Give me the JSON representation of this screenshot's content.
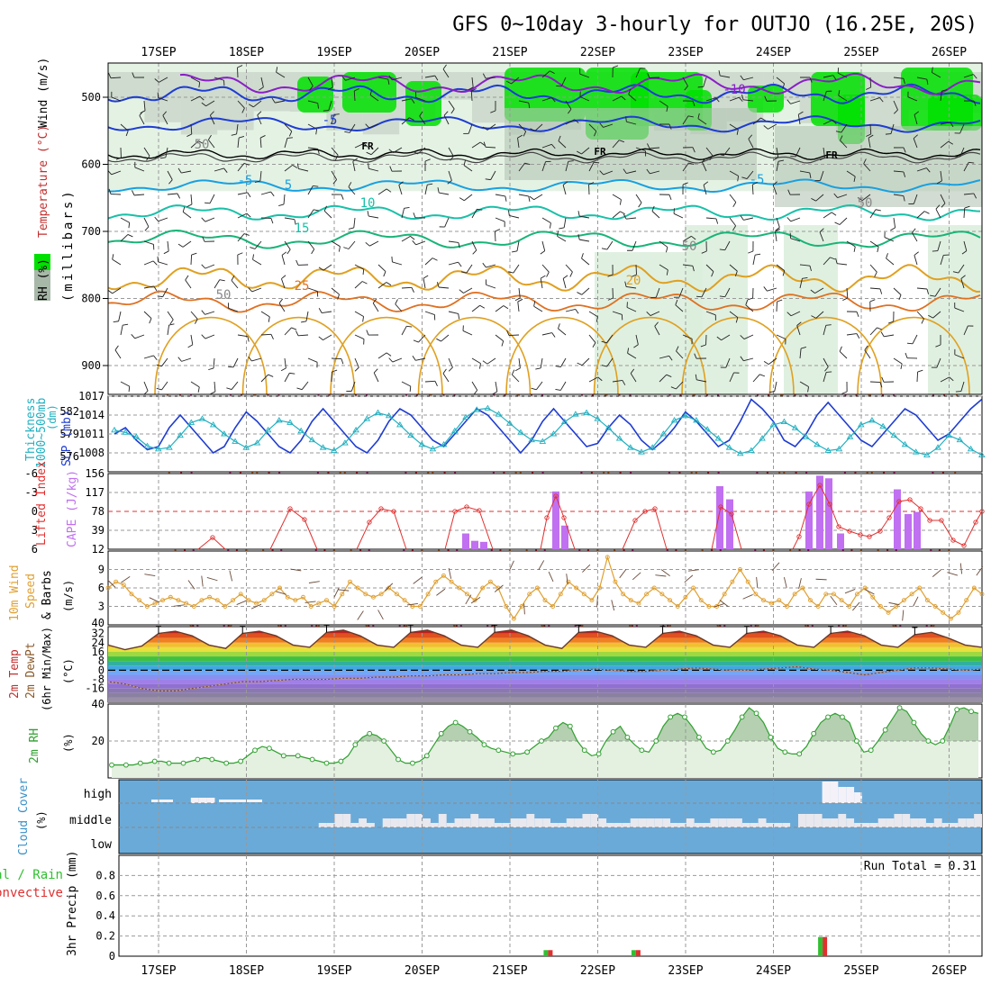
{
  "title": "GFS 0~10day 3-hourly for OUTJO (16.25E, 20S)",
  "dates": [
    "17SEP",
    "18SEP",
    "19SEP",
    "20SEP",
    "21SEP",
    "22SEP",
    "23SEP",
    "24SEP",
    "25SEP",
    "26SEP"
  ],
  "colors": {
    "rh_green": "#00e000",
    "rh_grey": "#a8b8a8",
    "temp_purple": "#8a1ec8",
    "temp_blue": "#1e3cd2",
    "temp_cyan": "#18a0e0",
    "temp_teal": "#18c0a8",
    "temp_green": "#18b478",
    "temp_gold": "#e0a020",
    "temp_orange": "#e07020",
    "temp_red": "#e02030",
    "temp_magenta": "#d0208a",
    "slp_color": "#1e3cd2",
    "thick_color": "#20b0c0",
    "li_color": "#e03030",
    "cape_color": "#c070f0",
    "wind_color": "#e0a030",
    "rh_line": "#30a030",
    "cloud_bg": "#6aaad8",
    "precip_total": "#30c030",
    "precip_conv": "#e03030"
  },
  "upper": {
    "ylabel_rh": "RH (%)",
    "ylabel_temp": "Temperature (°C)",
    "ylabel_wind": "Wind (m/s)",
    "ylabel_mb": "(millibars)",
    "ytick_labels": [
      "500",
      "600",
      "700",
      "800",
      "900"
    ],
    "contour_labels": [
      "-10",
      "-5",
      "FR",
      "FR",
      "FR",
      "-5",
      "-5",
      "5",
      "10",
      "15",
      "25",
      "20",
      "50",
      "50",
      "50",
      "50"
    ]
  },
  "panel_labels": {
    "thickness": "Thickness",
    "thickness_range": "1000~500mb",
    "thickness_unit": "(dm)",
    "slp": "SLP (mb)",
    "lifted_index": "Lifted Index",
    "cape": "CAPE (J/kg)",
    "wind10_a": "10m Wind",
    "wind10_b": "Speed",
    "wind10_c": "& Barbs",
    "wind10_unit": "(m/s)",
    "temp_a": "2m Temp",
    "temp_b": "2m DewPt",
    "temp_c": "(6hr Min/Max)",
    "temp_unit": "(°C)",
    "rh2m": "2m RH",
    "rh_unit": "(%)",
    "cloud_a": "Cloud Cover",
    "cloud_unit": "(%)",
    "cloud_high": "high",
    "cloud_middle": "middle",
    "cloud_low": "low",
    "precip_total": "Total / Rain",
    "precip_conv": "Convective",
    "precip_ylabel": "3hr Precip (mm)",
    "run_total": "Run Total = 0.31"
  },
  "chart_data": [
    {
      "type": "line",
      "title": "SLP (mb) and 1000~500mb Thickness (dm)",
      "x_unit": "3-hourly steps from 16SEP 18Z",
      "series": [
        {
          "name": "SLP (mb)",
          "ylim": [
            1005,
            1017
          ],
          "values": [
            1011,
            1012,
            1010,
            1008.5,
            1009,
            1012,
            1014,
            1012,
            1010,
            1008,
            1009,
            1012,
            1014.5,
            1013,
            1011,
            1009,
            1008,
            1010,
            1013,
            1015,
            1013,
            1011,
            1009,
            1008,
            1010,
            1013,
            1015,
            1014,
            1012,
            1010,
            1009,
            1011,
            1013,
            1015,
            1014,
            1012,
            1010,
            1008,
            1010,
            1013,
            1015,
            1013,
            1011,
            1009,
            1009.5,
            1012,
            1014,
            1012.5,
            1010,
            1008.5,
            1010,
            1012,
            1014.5,
            1013,
            1011,
            1009,
            1010,
            1013,
            1016.5,
            1015,
            1013,
            1010,
            1009,
            1011,
            1014,
            1016,
            1014,
            1012,
            1010,
            1009,
            1011,
            1013,
            1015,
            1014,
            1012,
            1010,
            1011,
            1013,
            1015,
            1016.5
          ]
        },
        {
          "name": "1000~500mb Thickness (dm)",
          "ylim": [
            574,
            584
          ],
          "values": [
            579.5,
            579.2,
            578.6,
            577.4,
            577,
            577.2,
            578.8,
            580.5,
            581,
            580.2,
            579,
            578,
            577.2,
            577.8,
            579.5,
            580.8,
            580.5,
            579.4,
            578.2,
            577.2,
            576.8,
            577.8,
            579.5,
            581,
            581.8,
            581.4,
            580.2,
            578.8,
            577.6,
            577,
            577.6,
            579.4,
            581.2,
            582.2,
            582.4,
            581.6,
            580.4,
            579.2,
            578.2,
            578,
            579,
            580.6,
            581.6,
            581.8,
            581,
            579.8,
            578.4,
            577.2,
            576.6,
            577.2,
            579,
            580.8,
            581.4,
            580.8,
            579.6,
            578.4,
            577.2,
            576.4,
            576.8,
            578.4,
            580.2,
            580.6,
            579.8,
            578.6,
            577.6,
            576.8,
            577,
            578.6,
            580.2,
            580.8,
            580,
            578.8,
            577.6,
            576.6,
            576.2,
            577.2,
            578.8,
            578.2,
            577,
            576.2
          ]
        }
      ]
    },
    {
      "type": "bar",
      "title": "Lifted Index and CAPE (J/kg)",
      "li_ylim": [
        6,
        -6
      ],
      "cape_ylim": [
        12,
        156
      ],
      "li_ticks": [
        "-6",
        "-3",
        "0",
        "3",
        "6"
      ],
      "cape_ticks": [
        "156",
        "117",
        "78",
        "39",
        "12"
      ],
      "lifted_index": [
        6,
        6,
        6,
        6,
        6,
        6,
        6,
        6,
        6,
        6,
        6,
        4.5,
        5.5,
        6,
        6,
        6,
        6,
        6,
        6,
        4,
        1,
        0,
        1,
        4,
        6,
        6,
        6,
        6,
        6,
        4,
        1,
        0,
        0,
        3,
        6,
        6,
        6,
        6,
        6,
        6,
        1,
        0,
        0,
        1,
        3,
        6,
        6,
        6,
        6,
        6,
        1,
        -1,
        2,
        6,
        6,
        6,
        6,
        6,
        3,
        1,
        0,
        4,
        6,
        6,
        6,
        6,
        6,
        4,
        1,
        0,
        0,
        4,
        6,
        6,
        6,
        6,
        6,
        1,
        -1,
        0,
        2,
        3,
        4,
        4,
        3,
        1,
        -1,
        0,
        2,
        4,
        4,
        5,
        6,
        6,
        6,
        5
      ],
      "cape": [
        0,
        0,
        0,
        0,
        0,
        0,
        0,
        0,
        0,
        0,
        0,
        0,
        0,
        0,
        0,
        0,
        0,
        0,
        0,
        0,
        0,
        0,
        0,
        0,
        0,
        0,
        0,
        0,
        0,
        0,
        0,
        0,
        0,
        0,
        0,
        0,
        0,
        0,
        0,
        0,
        0,
        0,
        0,
        0,
        0,
        0,
        0,
        0,
        0,
        0,
        0,
        0,
        0,
        0,
        30,
        16,
        14,
        0,
        0,
        0,
        0,
        0,
        0,
        0,
        0,
        0,
        0,
        0,
        0,
        0,
        0,
        0,
        0,
        0,
        0,
        0,
        110,
        45,
        0,
        0,
        0,
        0,
        0,
        0,
        0,
        0,
        0,
        0,
        0,
        0,
        0,
        0,
        0,
        0,
        0,
        0,
        0,
        0
      ]
    },
    {
      "type": "line",
      "title": "10m Wind Speed (m/s)",
      "ylim": [
        0,
        12
      ],
      "y_ticks": [
        "9",
        "6",
        "3"
      ],
      "values": [
        6,
        7,
        6.5,
        5,
        4,
        3,
        3.5,
        4,
        4.5,
        4,
        3.5,
        3,
        4,
        4.5,
        4,
        3,
        4,
        5,
        4,
        3.5,
        4,
        5,
        6,
        4.5,
        4,
        4.5,
        3,
        3.5,
        4,
        3,
        5,
        7,
        6,
        5,
        4.5,
        5,
        6,
        5,
        4,
        3,
        3,
        5,
        7,
        8,
        7,
        6,
        5,
        4,
        6,
        7,
        6,
        3,
        1,
        3,
        5,
        6,
        4,
        3,
        5,
        7,
        6,
        5,
        4,
        6,
        11,
        7,
        5,
        4,
        3.5,
        5,
        6,
        5,
        4,
        3,
        4.5,
        6,
        4,
        3,
        3,
        5,
        7,
        9,
        7,
        5,
        4,
        3.5,
        4,
        3,
        5,
        6,
        4,
        3,
        5,
        5,
        4,
        3,
        5,
        6,
        4.5,
        3,
        2,
        3,
        4,
        5,
        6,
        4,
        3,
        2,
        1,
        2,
        4,
        6,
        5
      ]
    },
    {
      "type": "area",
      "title": "2m Temp, 2m DewPt (6hr Min/Max) (°C)",
      "ylim": [
        -28,
        38
      ],
      "y_ticks": [
        "32",
        "24",
        "16",
        "8",
        "0",
        "-8",
        "-16"
      ],
      "temp_max": [
        22,
        18,
        21,
        32,
        34,
        30,
        22,
        19,
        32,
        34,
        30,
        22,
        20,
        33,
        35,
        30,
        22,
        20,
        33,
        35,
        30,
        22,
        20,
        33,
        35,
        30,
        22,
        19,
        33,
        34,
        30,
        22,
        20,
        32,
        34,
        30,
        22,
        20,
        32,
        34,
        30,
        22,
        20,
        32,
        34,
        30,
        22,
        20,
        31,
        33,
        28,
        22,
        20
      ],
      "dewpoint": [
        -10,
        -12,
        -16,
        -18,
        -18,
        -16,
        -14,
        -12,
        -10,
        -10,
        -9,
        -8,
        -8,
        -8,
        -7,
        -7,
        -6,
        -6,
        -5,
        -5,
        -4,
        -4,
        -3,
        -3,
        -2,
        -2,
        -1,
        -1,
        0,
        1,
        0,
        -1,
        -1,
        0,
        1,
        2,
        1,
        0,
        0,
        1,
        2,
        3,
        1,
        0,
        -2,
        -4,
        -2,
        0,
        2,
        2,
        1,
        0,
        1
      ]
    },
    {
      "type": "area",
      "title": "2m RH (%)",
      "ylim": [
        0,
        40
      ],
      "y_ticks": [
        "40",
        "20"
      ],
      "values": [
        7,
        7,
        7,
        7,
        8,
        8,
        9,
        9,
        8,
        8,
        8,
        9,
        10,
        11,
        10,
        9,
        8,
        8,
        9,
        12,
        15,
        17,
        16,
        14,
        12,
        12,
        12,
        11,
        10,
        9,
        8,
        8,
        9,
        12,
        18,
        22,
        24,
        23,
        20,
        15,
        10,
        8,
        8,
        9,
        12,
        18,
        24,
        28,
        30,
        28,
        25,
        22,
        18,
        16,
        15,
        14,
        13,
        13,
        14,
        17,
        20,
        22,
        27,
        30,
        28,
        20,
        15,
        12,
        13,
        20,
        25,
        28,
        22,
        18,
        15,
        14,
        20,
        28,
        33,
        35,
        33,
        28,
        22,
        16,
        14,
        15,
        20,
        26,
        33,
        38,
        35,
        30,
        22,
        16,
        14,
        13,
        13,
        17,
        24,
        30,
        33,
        35,
        33,
        30,
        20,
        14,
        15,
        20,
        26,
        32,
        38,
        36,
        30,
        24,
        20,
        18,
        20,
        28,
        37,
        38,
        36,
        35
      ]
    },
    {
      "type": "heatmap",
      "title": "Cloud Cover (%)",
      "levels": [
        "high",
        "middle",
        "low"
      ],
      "middle": [
        0,
        0,
        0,
        0,
        0,
        0,
        0,
        0,
        0,
        0,
        0,
        0,
        0,
        0,
        0,
        0,
        0,
        0,
        0,
        0,
        0,
        0,
        0,
        0,
        0,
        1,
        1,
        3,
        3,
        1,
        2,
        1,
        0,
        2,
        2,
        2,
        3,
        3,
        2,
        1,
        3,
        1,
        2,
        2,
        3,
        2,
        2,
        1,
        1,
        2,
        2,
        3,
        2,
        2,
        1,
        1,
        2,
        2,
        3,
        3,
        2,
        1,
        1,
        1,
        2,
        2,
        2,
        2,
        2,
        1,
        1,
        2,
        1,
        1,
        2,
        2,
        2,
        2,
        1,
        1,
        2,
        1,
        1,
        1,
        0,
        3,
        3,
        3,
        2,
        2,
        3,
        2,
        1,
        1,
        1,
        2,
        2,
        3,
        3,
        2,
        2,
        1,
        2,
        1,
        1,
        2,
        2,
        3
      ],
      "high": [
        0,
        0,
        0,
        0,
        0,
        0,
        0,
        0,
        0,
        1,
        1,
        1,
        0,
        0,
        0,
        0,
        0,
        0,
        0,
        0,
        0,
        0,
        0,
        0,
        0,
        0,
        0,
        0,
        0,
        0,
        0,
        0,
        0,
        0,
        0,
        0,
        0,
        0,
        0,
        0,
        0,
        0,
        0,
        0,
        0,
        0,
        0,
        0,
        0,
        0,
        0,
        0,
        0,
        0,
        0,
        0,
        0,
        0,
        0,
        0,
        0,
        0,
        0,
        0,
        0,
        0,
        0,
        0,
        0,
        0,
        0,
        0,
        0,
        0,
        0,
        0,
        0,
        0,
        0,
        0,
        0,
        0,
        0,
        0,
        0,
        0,
        0,
        0,
        4,
        4,
        3,
        3,
        2,
        0,
        0,
        0,
        0,
        0,
        0,
        0,
        0,
        0,
        0,
        0,
        0,
        0,
        0,
        0,
        0,
        0,
        0,
        0,
        0,
        0,
        0,
        0
      ]
    },
    {
      "type": "bar",
      "title": "3hr Precip (mm)",
      "ylim": [
        0,
        1.0
      ],
      "y_ticks": [
        "0.8",
        "0.6",
        "0.4",
        "0.2",
        "0"
      ],
      "bars": [
        {
          "at_step": 39.5,
          "total": 0.06,
          "convective": 0.06
        },
        {
          "at_step": 47.5,
          "total": 0.06,
          "convective": 0.06
        },
        {
          "at_step": 64.5,
          "total": 0.19,
          "convective": 0.19
        }
      ],
      "run_total": 0.31
    }
  ]
}
